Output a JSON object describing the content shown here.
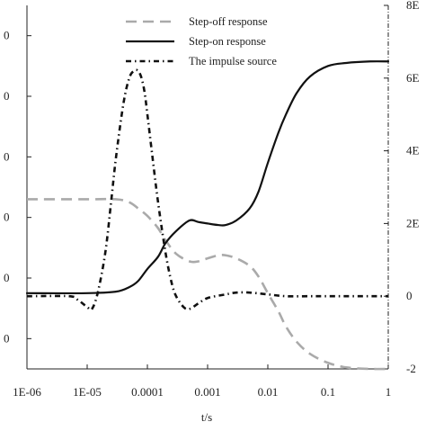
{
  "chart_data": {
    "type": "line",
    "title": "",
    "xlabel": "t/s",
    "ylabel_left": "",
    "ylabel_right": "",
    "x_scale": "log",
    "xlim": [
      1e-06,
      1
    ],
    "x_tick_labels": [
      "1E-06",
      "1E-05",
      "0.0001",
      "0.001",
      "0.01",
      "0.1",
      "1"
    ],
    "x_tick_values": [
      1e-06,
      1e-05,
      0.0001,
      0.001,
      0.01,
      0.1,
      1
    ],
    "left_axis": {
      "ylim": [
        -0.15,
        1.05
      ],
      "tick_values": [
        -0.05,
        0.15,
        0.35,
        0.55,
        0.75,
        0.95
      ],
      "tick_labels": [
        "0",
        "0",
        "0",
        "0",
        "0",
        "0"
      ]
    },
    "right_axis": {
      "ylim": [
        -2,
        8
      ],
      "tick_values": [
        -2,
        0,
        2,
        4,
        6,
        8
      ],
      "tick_labels": [
        "-2",
        "0",
        "2E",
        "4E",
        "6E",
        "8E"
      ]
    },
    "legend": {
      "position": "top-center",
      "entries": [
        {
          "label": "Step-off response",
          "style": "dashed",
          "color": "#aaaaaa"
        },
        {
          "label": "Step-on response",
          "style": "solid",
          "color": "#111111"
        },
        {
          "label": "The impulse source",
          "style": "dash-dot",
          "color": "#111111"
        }
      ]
    },
    "series": [
      {
        "name": "Step-off response",
        "axis": "left",
        "color": "#aaaaaa",
        "style": "dashed",
        "x": [
          1e-06,
          1e-05,
          3e-05,
          5e-05,
          7e-05,
          0.0001,
          0.00015,
          0.0002,
          0.0003,
          0.0005,
          0.0007,
          0.001,
          0.0015,
          0.002,
          0.003,
          0.005,
          0.007,
          0.01,
          0.015,
          0.02,
          0.03,
          0.05,
          0.1,
          0.2,
          0.5,
          1
        ],
        "y": [
          0.41,
          0.41,
          0.41,
          0.4,
          0.38,
          0.355,
          0.315,
          0.275,
          0.23,
          0.205,
          0.205,
          0.215,
          0.225,
          0.225,
          0.215,
          0.19,
          0.155,
          0.1,
          0.04,
          -0.01,
          -0.06,
          -0.1,
          -0.13,
          -0.145,
          -0.15,
          -0.15
        ]
      },
      {
        "name": "Step-on response",
        "axis": "left",
        "color": "#111111",
        "style": "solid",
        "x": [
          1e-06,
          1e-05,
          3e-05,
          5e-05,
          7e-05,
          0.0001,
          0.00015,
          0.0002,
          0.0003,
          0.0005,
          0.0007,
          0.001,
          0.0015,
          0.002,
          0.003,
          0.005,
          0.007,
          0.01,
          0.015,
          0.02,
          0.03,
          0.05,
          0.1,
          0.2,
          0.5,
          1
        ],
        "y": [
          0.1,
          0.1,
          0.105,
          0.12,
          0.14,
          0.18,
          0.22,
          0.265,
          0.305,
          0.34,
          0.335,
          0.33,
          0.325,
          0.325,
          0.34,
          0.38,
          0.435,
          0.53,
          0.63,
          0.69,
          0.76,
          0.815,
          0.85,
          0.86,
          0.865,
          0.865
        ]
      },
      {
        "name": "The impulse source",
        "axis": "right",
        "color": "#111111",
        "style": "dash-dot",
        "x": [
          1e-06,
          5e-06,
          7e-06,
          1e-05,
          1.2e-05,
          1.5e-05,
          2e-05,
          2.5e-05,
          3e-05,
          4e-05,
          5e-05,
          6e-05,
          7e-05,
          8e-05,
          9e-05,
          0.0001,
          0.00012,
          0.00015,
          0.0002,
          0.00025,
          0.0003,
          0.0004,
          0.0005,
          0.0007,
          0.001,
          0.002,
          0.003,
          0.005,
          0.01,
          0.02,
          0.05,
          0.1,
          0.3,
          1
        ],
        "y": [
          0,
          0,
          -0.1,
          -0.3,
          -0.35,
          0.1,
          1.2,
          2.6,
          3.8,
          5.3,
          6.0,
          6.2,
          6.2,
          6.0,
          5.6,
          5.0,
          3.9,
          2.6,
          1.2,
          0.4,
          0.0,
          -0.3,
          -0.35,
          -0.2,
          -0.05,
          0.05,
          0.1,
          0.1,
          0.05,
          0.0,
          0.0,
          0.0,
          0.0,
          0.0
        ]
      }
    ]
  }
}
